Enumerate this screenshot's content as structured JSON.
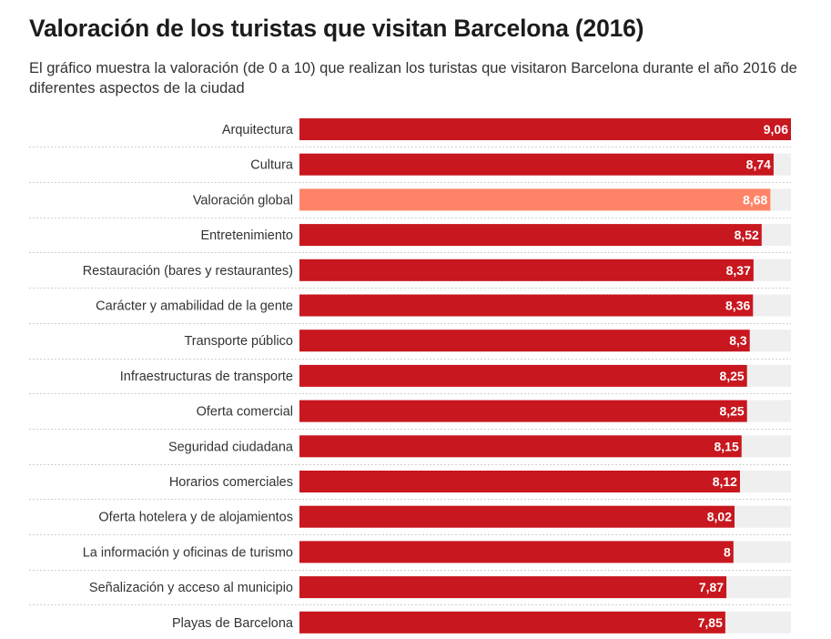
{
  "title": "Valoración de los turistas que visitan Barcelona (2016)",
  "subtitle": "El gráfico muestra la valoración (de 0 a 10) que realizan los turistas que visitaron Barcelona durante el año 2016 de diferentes aspectos de la ciudad",
  "colors": {
    "bar": "#c8171e",
    "highlight": "#ff8366",
    "track": "#efefef",
    "divider": "#cfcfcf"
  },
  "chart_data": {
    "type": "bar",
    "orientation": "horizontal",
    "ylim": [
      0,
      10
    ],
    "highlight_category": "Valoración global",
    "categories": [
      "Arquitectura",
      "Cultura",
      "Valoración global",
      "Entretenimiento",
      "Restauración (bares y restaurantes)",
      "Carácter y amabilidad de la gente",
      "Transporte público",
      "Infraestructuras de transporte",
      "Oferta comercial",
      "Seguridad ciudadana",
      "Horarios comerciales",
      "Oferta hotelera y de alojamientos",
      "La información y oficinas de turismo",
      "Señalización y acceso al municipio",
      "Playas de Barcelona"
    ],
    "values": [
      9.06,
      8.74,
      8.68,
      8.52,
      8.37,
      8.36,
      8.3,
      8.25,
      8.25,
      8.15,
      8.12,
      8.02,
      8,
      7.87,
      7.85
    ],
    "value_labels": [
      "9,06",
      "8,74",
      "8,68",
      "8,52",
      "8,37",
      "8,36",
      "8,3",
      "8,25",
      "8,25",
      "8,15",
      "8,12",
      "8,02",
      "8",
      "7,87",
      "7,85"
    ]
  }
}
